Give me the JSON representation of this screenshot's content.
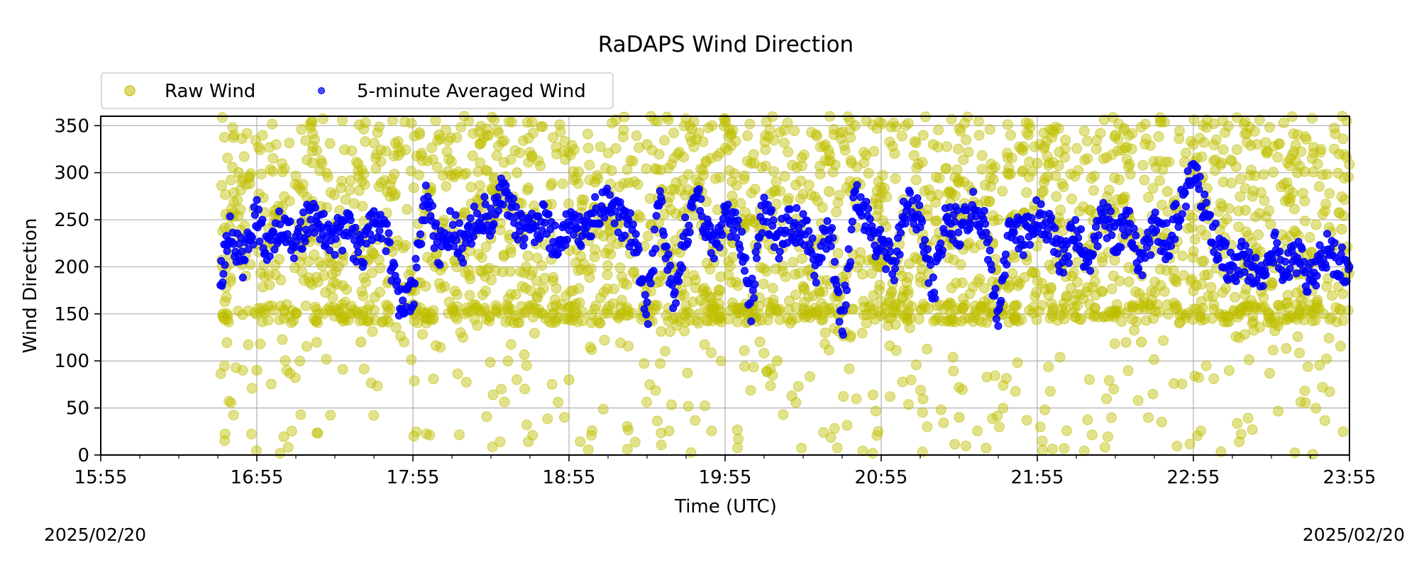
{
  "chart_data": {
    "type": "scatter",
    "title": "RaDAPS Wind Direction",
    "xlabel": "Time (UTC)",
    "ylabel": "Wind Direction",
    "xlim": [
      "15:55",
      "23:55"
    ],
    "ylim": [
      0,
      360
    ],
    "x_ticks": [
      "15:55",
      "16:55",
      "17:55",
      "18:55",
      "19:55",
      "20:55",
      "21:55",
      "22:55",
      "23:55"
    ],
    "y_ticks": [
      0,
      50,
      100,
      150,
      200,
      250,
      300,
      350
    ],
    "grid": true,
    "legend_position": "upper-left outside",
    "colors": {
      "raw": "#bfbf00",
      "avg": "#0000ff"
    },
    "series": [
      {
        "name": "Raw Wind",
        "marker": "circle",
        "note_range": "scattered observations between 16:41 and 23:55, mostly 150-350",
        "x": [
          "16:42",
          "16:48",
          "16:55",
          "17:02",
          "17:10",
          "17:20",
          "17:28",
          "17:35",
          "17:45",
          "17:55",
          "18:05",
          "18:15",
          "18:25",
          "18:35",
          "18:45",
          "18:55",
          "19:05",
          "19:15",
          "19:25",
          "19:35",
          "19:45",
          "19:55",
          "20:05",
          "20:15",
          "20:25",
          "20:35",
          "20:45",
          "20:55",
          "21:05",
          "21:15",
          "21:25",
          "21:35",
          "21:45",
          "21:55",
          "22:05",
          "22:15",
          "22:25",
          "22:35",
          "22:45",
          "22:55",
          "23:05",
          "23:15",
          "23:25",
          "23:35",
          "23:45",
          "23:52"
        ],
        "y": [
          150,
          300,
          90,
          260,
          150,
          310,
          180,
          120,
          280,
          160,
          340,
          150,
          230,
          300,
          150,
          80,
          290,
          150,
          330,
          200,
          150,
          260,
          310,
          100,
          150,
          280,
          350,
          200,
          150,
          330,
          40,
          270,
          150,
          310,
          220,
          150,
          340,
          120,
          280,
          330,
          150,
          260,
          180,
          300,
          150,
          240
        ]
      },
      {
        "name": "5-minute Averaged Wind",
        "marker": "circle",
        "x": [
          "16:41",
          "16:45",
          "16:50",
          "16:55",
          "17:00",
          "17:05",
          "17:10",
          "17:15",
          "17:20",
          "17:25",
          "17:30",
          "17:35",
          "17:40",
          "17:45",
          "17:50",
          "17:55",
          "18:00",
          "18:05",
          "18:10",
          "18:15",
          "18:20",
          "18:25",
          "18:30",
          "18:35",
          "18:40",
          "18:45",
          "18:50",
          "18:55",
          "19:00",
          "19:05",
          "19:10",
          "19:15",
          "19:20",
          "19:25",
          "19:30",
          "19:35",
          "19:40",
          "19:45",
          "19:50",
          "19:55",
          "20:00",
          "20:05",
          "20:10",
          "20:15",
          "20:20",
          "20:25",
          "20:30",
          "20:35",
          "20:40",
          "20:45",
          "20:50",
          "20:55",
          "21:00",
          "21:05",
          "21:10",
          "21:15",
          "21:20",
          "21:25",
          "21:30",
          "21:35",
          "21:40",
          "21:45",
          "21:50",
          "21:55",
          "22:00",
          "22:05",
          "22:10",
          "22:15",
          "22:20",
          "22:25",
          "22:30",
          "22:35",
          "22:40",
          "22:45",
          "22:50",
          "22:55",
          "23:00",
          "23:05",
          "23:10",
          "23:15",
          "23:20",
          "23:25",
          "23:30",
          "23:35",
          "23:40",
          "23:45",
          "23:50",
          "23:55"
        ],
        "y": [
          185,
          240,
          205,
          255,
          215,
          250,
          225,
          250,
          245,
          230,
          240,
          210,
          250,
          230,
          160,
          170,
          275,
          215,
          245,
          215,
          260,
          250,
          285,
          245,
          235,
          250,
          225,
          240,
          235,
          255,
          270,
          250,
          235,
          150,
          275,
          160,
          240,
          270,
          215,
          250,
          250,
          160,
          270,
          225,
          245,
          245,
          200,
          245,
          135,
          275,
          245,
          220,
          205,
          270,
          255,
          170,
          255,
          240,
          265,
          240,
          145,
          250,
          230,
          255,
          235,
          205,
          240,
          200,
          260,
          230,
          250,
          200,
          245,
          225,
          265,
          300,
          255,
          215,
          200,
          210,
          185,
          225,
          200,
          210,
          185,
          220,
          205,
          200
        ]
      }
    ]
  },
  "footer": {
    "date_left": "2025/02/20",
    "date_right": "2025/02/20"
  }
}
